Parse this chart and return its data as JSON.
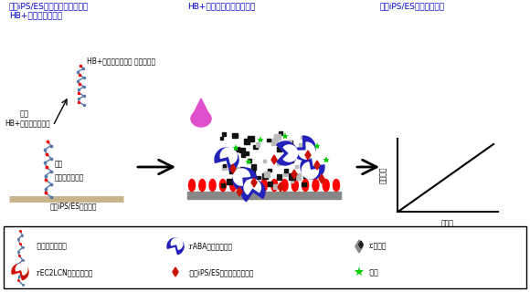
{
  "title_left": "ヒトiPS/ES細胞から分泌された\nHB+ポドカリキシン",
  "title_center": "HB+ポドカリキシンの検出",
  "title_right": "ヒトiPS/ES細胞数の測定",
  "title_color": "#0000cc",
  "bg_color": "#ffffff",
  "label_bunpi": "分泌",
  "label_h3podocalyxin": "HB+ポドカリキシン 細胞培養液",
  "label_hb_podocalyxin": "HB+ポドカリキシン",
  "label_sugarkain": "糖鎖",
  "label_tanpakushitsu": "タンパク質骨格",
  "label_cell_surface": "ヒトiPS/ES細胞表面",
  "label_yaxis": "蛍光強度",
  "label_xaxis": "細胞数"
}
